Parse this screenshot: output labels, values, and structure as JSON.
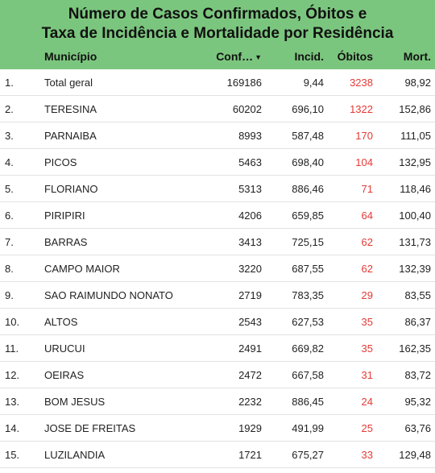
{
  "header": {
    "title_line1": "Número de Casos Confirmados, Óbitos e",
    "title_line2": "Taxa de Incidência e Mortalidade por Residência",
    "bg_color": "#7bc67e"
  },
  "columns": {
    "municipio": "Município",
    "confirmados": "Conf…",
    "incidencia": "Incid.",
    "obitos": "Óbitos",
    "mortalidade": "Mort.",
    "sort_icon": "sort-descending-icon"
  },
  "obitos_color": "#e53935",
  "rows": [
    {
      "num": "1.",
      "municipio": "Total geral",
      "conf": "169186",
      "incid": "9,44",
      "obitos": "3238",
      "mort": "98,92"
    },
    {
      "num": "2.",
      "municipio": "TERESINA",
      "conf": "60202",
      "incid": "696,10",
      "obitos": "1322",
      "mort": "152,86"
    },
    {
      "num": "3.",
      "municipio": "PARNAIBA",
      "conf": "8993",
      "incid": "587,48",
      "obitos": "170",
      "mort": "111,05"
    },
    {
      "num": "4.",
      "municipio": "PICOS",
      "conf": "5463",
      "incid": "698,40",
      "obitos": "104",
      "mort": "132,95"
    },
    {
      "num": "5.",
      "municipio": "FLORIANO",
      "conf": "5313",
      "incid": "886,46",
      "obitos": "71",
      "mort": "118,46"
    },
    {
      "num": "6.",
      "municipio": "PIRIPIRI",
      "conf": "4206",
      "incid": "659,85",
      "obitos": "64",
      "mort": "100,40"
    },
    {
      "num": "7.",
      "municipio": "BARRAS",
      "conf": "3413",
      "incid": "725,15",
      "obitos": "62",
      "mort": "131,73"
    },
    {
      "num": "8.",
      "municipio": "CAMPO MAIOR",
      "conf": "3220",
      "incid": "687,55",
      "obitos": "62",
      "mort": "132,39"
    },
    {
      "num": "9.",
      "municipio": "SAO RAIMUNDO NONATO",
      "conf": "2719",
      "incid": "783,35",
      "obitos": "29",
      "mort": "83,55"
    },
    {
      "num": "10.",
      "municipio": "ALTOS",
      "conf": "2543",
      "incid": "627,53",
      "obitos": "35",
      "mort": "86,37"
    },
    {
      "num": "11.",
      "municipio": "URUCUI",
      "conf": "2491",
      "incid": "669,82",
      "obitos": "35",
      "mort": "162,35"
    },
    {
      "num": "12.",
      "municipio": "OEIRAS",
      "conf": "2472",
      "incid": "667,58",
      "obitos": "31",
      "mort": "83,72"
    },
    {
      "num": "13.",
      "municipio": "BOM JESUS",
      "conf": "2232",
      "incid": "886,45",
      "obitos": "24",
      "mort": "95,32"
    },
    {
      "num": "14.",
      "municipio": "JOSE DE FREITAS",
      "conf": "1929",
      "incid": "491,99",
      "obitos": "25",
      "mort": "63,76"
    },
    {
      "num": "15.",
      "municipio": "LUZILANDIA",
      "conf": "1721",
      "incid": "675,27",
      "obitos": "33",
      "mort": "129,48"
    }
  ]
}
